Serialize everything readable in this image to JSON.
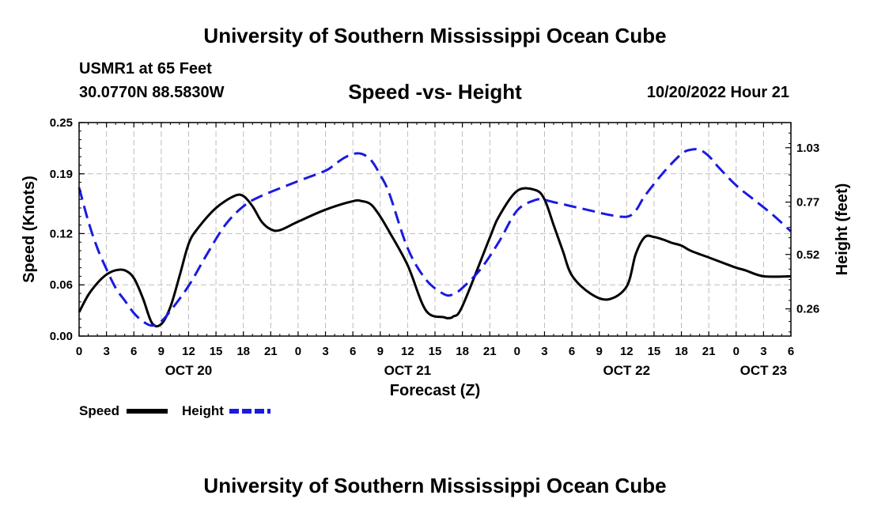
{
  "header": {
    "title": "University of Southern Mississippi Ocean Cube",
    "station": "USMR1 at 65 Feet",
    "coords": "30.0770N  88.5830W",
    "subtitle": "Speed -vs- Height",
    "datetime": "10/20/2022 Hour 21"
  },
  "footer": {
    "title": "University of Southern Mississippi Ocean Cube"
  },
  "chart_data": {
    "type": "line",
    "title": "Speed -vs- Height",
    "xlabel": "Forecast (Z)",
    "ylabel": "Speed (Knots)",
    "y2label": "Height (feet)",
    "x_unit": "hours since OCT 20 00Z",
    "xlim": [
      0,
      78
    ],
    "ylim": [
      0,
      0.25
    ],
    "y2lim": [
      0.13,
      1.15
    ],
    "x_ticks": [
      0,
      3,
      6,
      9,
      12,
      15,
      18,
      21,
      24,
      27,
      30,
      33,
      36,
      39,
      42,
      45,
      48,
      51,
      54,
      57,
      60,
      63,
      66,
      69,
      72,
      75,
      78
    ],
    "x_tick_labels": [
      "0",
      "3",
      "6",
      "9",
      "12",
      "15",
      "18",
      "21",
      "0",
      "3",
      "6",
      "9",
      "12",
      "15",
      "18",
      "21",
      "0",
      "3",
      "6",
      "9",
      "12",
      "15",
      "18",
      "21",
      "0",
      "3",
      "6"
    ],
    "date_labels": [
      {
        "x": 12,
        "label": "OCT 20"
      },
      {
        "x": 36,
        "label": "OCT 21"
      },
      {
        "x": 60,
        "label": "OCT 22"
      },
      {
        "x": 75,
        "label": "OCT 23"
      }
    ],
    "y_ticks": [
      0.0,
      0.06,
      0.12,
      0.19,
      0.25
    ],
    "y_tick_labels": [
      "0.00",
      "0.06",
      "0.12",
      "0.19",
      "0.25"
    ],
    "y2_ticks": [
      0.26,
      0.52,
      0.77,
      1.03
    ],
    "y2_tick_labels": [
      "0.26",
      "0.52",
      "0.77",
      "1.03"
    ],
    "grid": true,
    "legend_position": "bottom-left",
    "series": [
      {
        "name": "Speed",
        "axis": "left",
        "color": "#000000",
        "dash": "solid",
        "x": [
          0,
          1,
          2,
          3,
          4,
          5,
          6,
          7,
          8,
          9,
          10,
          11,
          12,
          13,
          15,
          17,
          18,
          19,
          20,
          21,
          22,
          24,
          27,
          30,
          31,
          32,
          33,
          34,
          36,
          38,
          40,
          40.5,
          41,
          42,
          45,
          46,
          48,
          50,
          51,
          52,
          53,
          54,
          56,
          58,
          60,
          61,
          62,
          63,
          64,
          65,
          66,
          67,
          69,
          71,
          72,
          73,
          75,
          78
        ],
        "values": [
          0.028,
          0.048,
          0.062,
          0.072,
          0.077,
          0.077,
          0.068,
          0.044,
          0.015,
          0.014,
          0.034,
          0.07,
          0.108,
          0.126,
          0.15,
          0.164,
          0.164,
          0.152,
          0.134,
          0.125,
          0.124,
          0.134,
          0.148,
          0.158,
          0.158,
          0.154,
          0.14,
          0.122,
          0.083,
          0.03,
          0.022,
          0.021,
          0.023,
          0.035,
          0.115,
          0.14,
          0.17,
          0.171,
          0.16,
          0.13,
          0.1,
          0.071,
          0.05,
          0.043,
          0.058,
          0.096,
          0.116,
          0.116,
          0.113,
          0.109,
          0.106,
          0.1,
          0.092,
          0.084,
          0.08,
          0.077,
          0.07,
          0.07
        ]
      },
      {
        "name": "Height",
        "axis": "right",
        "color": "#1a1ae0",
        "dash": "dashed",
        "x": [
          0,
          1,
          2,
          3,
          4,
          5,
          6,
          7,
          8,
          9,
          10,
          12,
          14,
          16,
          18,
          20,
          24,
          27,
          28,
          29,
          30,
          31,
          32,
          33,
          34,
          36,
          38,
          40,
          41,
          42,
          44,
          46,
          48,
          50,
          51,
          52,
          54,
          56,
          58,
          60,
          61,
          62,
          64,
          66,
          67,
          68,
          69,
          70,
          72,
          74,
          76,
          78
        ],
        "values": [
          0.84,
          0.68,
          0.55,
          0.45,
          0.36,
          0.3,
          0.24,
          0.2,
          0.18,
          0.2,
          0.25,
          0.37,
          0.52,
          0.66,
          0.75,
          0.8,
          0.87,
          0.92,
          0.95,
          0.98,
          1.0,
          1.0,
          0.97,
          0.9,
          0.81,
          0.55,
          0.4,
          0.33,
          0.33,
          0.36,
          0.45,
          0.58,
          0.73,
          0.78,
          0.78,
          0.77,
          0.75,
          0.73,
          0.71,
          0.7,
          0.73,
          0.8,
          0.91,
          1.0,
          1.02,
          1.02,
          0.99,
          0.94,
          0.85,
          0.78,
          0.71,
          0.63
        ]
      }
    ],
    "legend": [
      {
        "label": "Speed",
        "series": "Speed"
      },
      {
        "label": "Height",
        "series": "Height"
      }
    ]
  }
}
